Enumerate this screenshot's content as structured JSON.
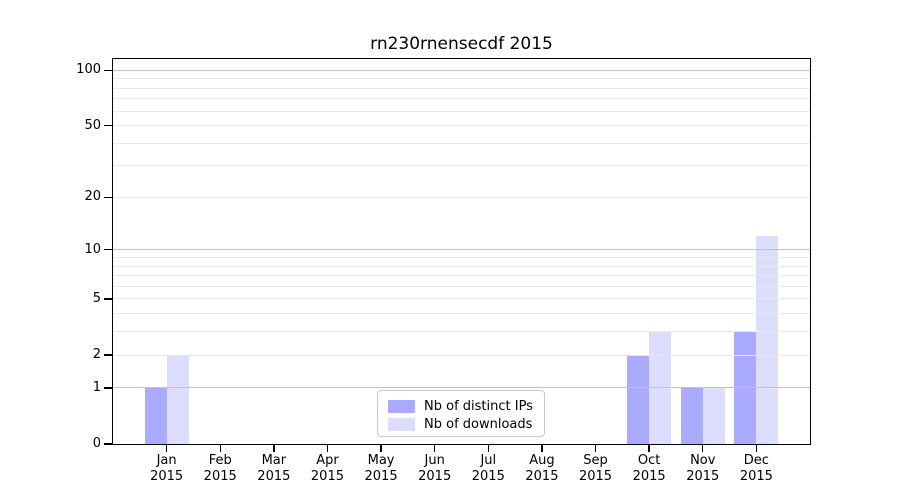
{
  "chart_data": {
    "type": "bar",
    "title": "rn230rnensecdf 2015",
    "categories": [
      "Jan",
      "Feb",
      "Mar",
      "Apr",
      "May",
      "Jun",
      "Jul",
      "Aug",
      "Sep",
      "Oct",
      "Nov",
      "Dec"
    ],
    "x_tick_year": "2015",
    "series": [
      {
        "name": "Nb of distinct IPs",
        "color": "#aaaaff",
        "values": [
          1,
          0,
          0,
          0,
          0,
          0,
          0,
          0,
          0,
          2,
          1,
          3
        ]
      },
      {
        "name": "Nb of downloads",
        "color": "#ddddff",
        "values": [
          2,
          0,
          0,
          0,
          0,
          0,
          0,
          0,
          0,
          3,
          1,
          12
        ]
      }
    ],
    "y_scale": "log1p",
    "ylim": [
      0,
      115
    ],
    "y_ticks": [
      0,
      1,
      2,
      5,
      10,
      20,
      50,
      100
    ],
    "y_major_gridlines": [
      1,
      10,
      100
    ],
    "y_minor_gridlines": [
      3,
      4,
      6,
      7,
      8,
      9,
      30,
      40,
      60,
      70,
      80,
      90
    ],
    "grid": true,
    "grid_over_bars": true,
    "legend_position": "lower center",
    "colors": {
      "axis": "#000000",
      "grid_major": "#c2c2c2",
      "grid_minor": "#e9e9e9",
      "background": "#ffffff"
    }
  }
}
